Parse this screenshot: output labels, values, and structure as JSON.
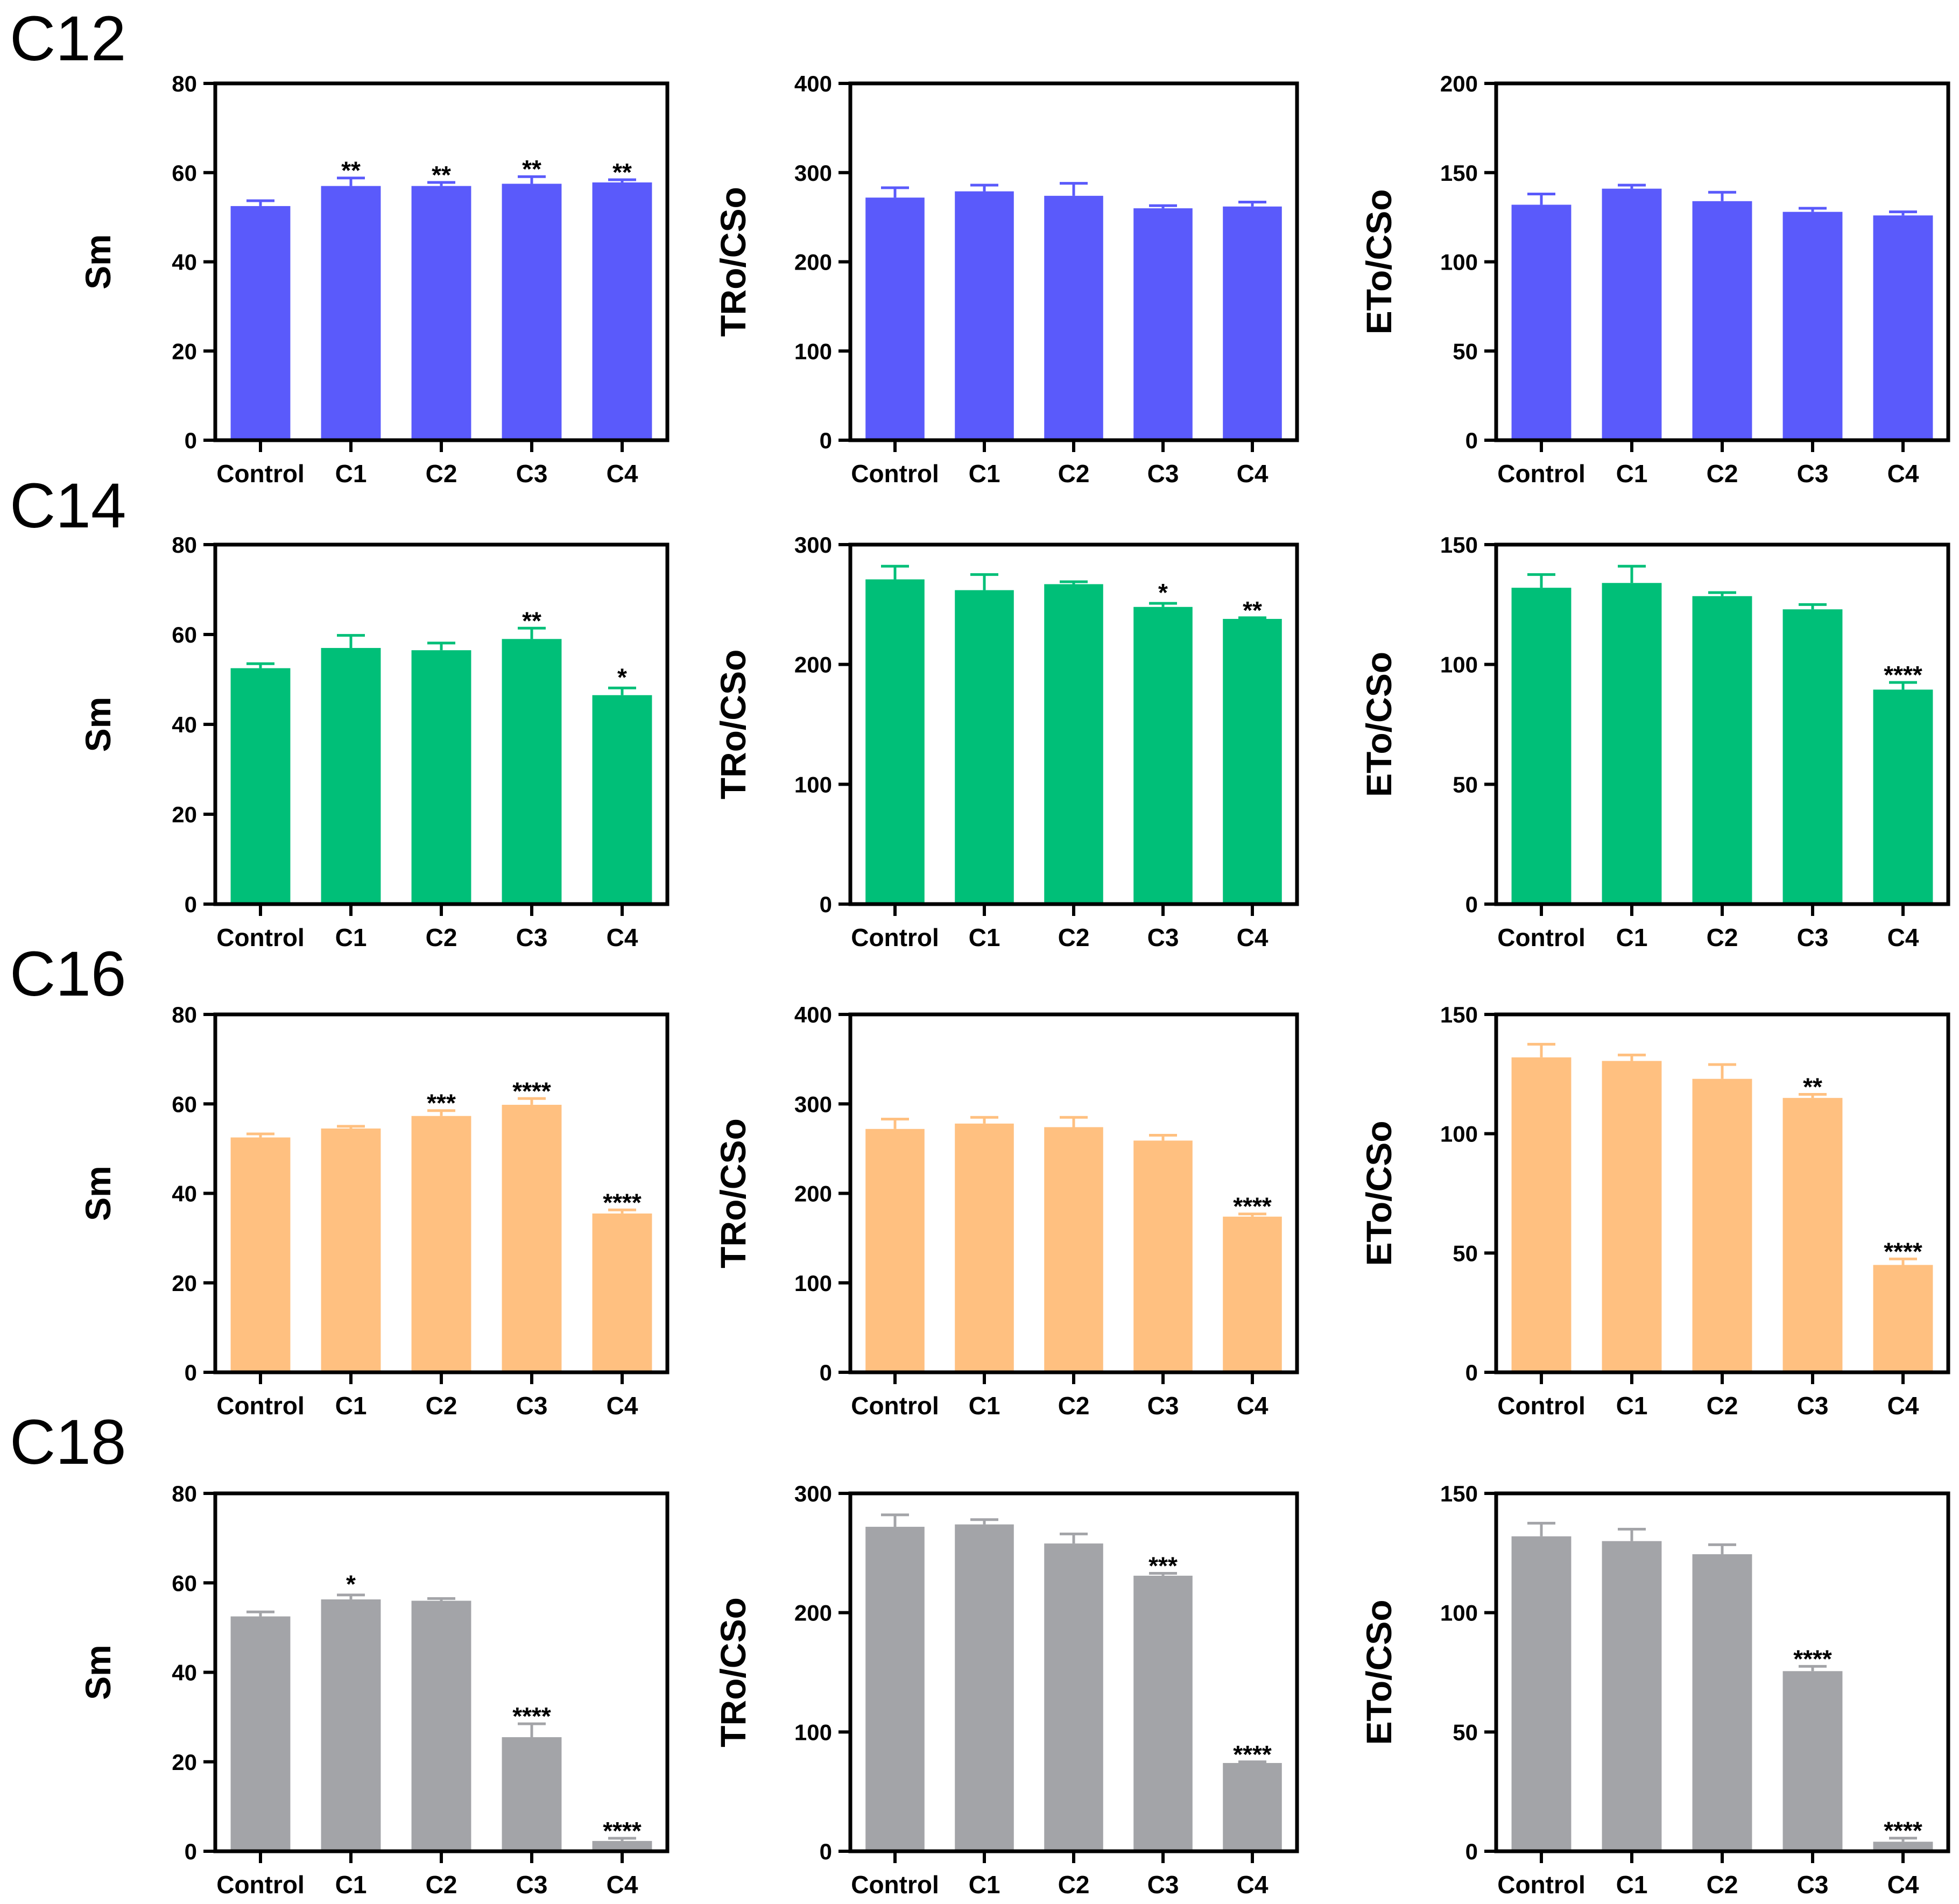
{
  "categories": [
    "Control",
    "C1",
    "C2",
    "C3",
    "C4"
  ],
  "rows": [
    {
      "label": "C12",
      "color": "#5a5afb"
    },
    {
      "label": "C14",
      "color": "#00bf78"
    },
    {
      "label": "C16",
      "color": "#ffc080"
    },
    {
      "label": "C18",
      "color": "#a3a4a8"
    }
  ],
  "chart_data": [
    {
      "type": "bar",
      "group": "C12",
      "ylabel": "Sm",
      "ylim": [
        0,
        80
      ],
      "yticks": [
        0,
        20,
        40,
        60,
        80
      ],
      "categories": [
        "Control",
        "C1",
        "C2",
        "C3",
        "C4"
      ],
      "values": [
        52.5,
        57,
        57,
        57.5,
        57.8
      ],
      "errors": [
        1.2,
        1.8,
        0.8,
        1.6,
        0.6
      ],
      "significance": [
        "",
        "**",
        "**",
        "**",
        "**"
      ]
    },
    {
      "type": "bar",
      "group": "C12",
      "ylabel": "TRo/CSo",
      "ylim": [
        0,
        400
      ],
      "yticks": [
        0,
        100,
        200,
        300,
        400
      ],
      "categories": [
        "Control",
        "C1",
        "C2",
        "C3",
        "C4"
      ],
      "values": [
        272,
        279,
        274,
        260,
        262
      ],
      "errors": [
        11,
        7,
        14,
        3,
        5
      ],
      "significance": [
        "",
        "",
        "",
        "",
        ""
      ]
    },
    {
      "type": "bar",
      "group": "C12",
      "ylabel": "ETo/CSo",
      "ylim": [
        0,
        200
      ],
      "yticks": [
        0,
        50,
        100,
        150,
        200
      ],
      "categories": [
        "Control",
        "C1",
        "C2",
        "C3",
        "C4"
      ],
      "values": [
        132,
        141,
        134,
        128,
        126
      ],
      "errors": [
        6,
        2,
        5,
        2,
        2
      ],
      "significance": [
        "",
        "",
        "",
        "",
        ""
      ]
    },
    {
      "type": "bar",
      "group": "C14",
      "ylabel": "Sm",
      "ylim": [
        0,
        80
      ],
      "yticks": [
        0,
        20,
        40,
        60,
        80
      ],
      "categories": [
        "Control",
        "C1",
        "C2",
        "C3",
        "C4"
      ],
      "values": [
        52.5,
        57,
        56.5,
        59,
        46.5
      ],
      "errors": [
        1,
        2.8,
        1.6,
        2.4,
        1.6
      ],
      "significance": [
        "",
        "",
        "",
        "**",
        "*"
      ]
    },
    {
      "type": "bar",
      "group": "C14",
      "ylabel": "TRo/CSo",
      "ylim": [
        0,
        300
      ],
      "yticks": [
        0,
        100,
        200,
        300
      ],
      "categories": [
        "Control",
        "C1",
        "C2",
        "C3",
        "C4"
      ],
      "values": [
        271,
        262,
        267,
        248,
        238
      ],
      "errors": [
        11,
        13,
        2,
        3,
        1
      ],
      "significance": [
        "",
        "",
        "",
        "*",
        "**"
      ]
    },
    {
      "type": "bar",
      "group": "C14",
      "ylabel": "ETo/CSo",
      "ylim": [
        0,
        150
      ],
      "yticks": [
        0,
        50,
        100,
        150
      ],
      "categories": [
        "Control",
        "C1",
        "C2",
        "C3",
        "C4"
      ],
      "values": [
        132,
        134,
        128.5,
        123,
        89.5
      ],
      "errors": [
        5.5,
        7,
        1.5,
        2,
        3
      ],
      "significance": [
        "",
        "",
        "",
        "",
        "****"
      ]
    },
    {
      "type": "bar",
      "group": "C16",
      "ylabel": "Sm",
      "ylim": [
        0,
        80
      ],
      "yticks": [
        0,
        20,
        40,
        60,
        80
      ],
      "categories": [
        "Control",
        "C1",
        "C2",
        "C3",
        "C4"
      ],
      "values": [
        52.5,
        54.5,
        57.3,
        59.8,
        35.5
      ],
      "errors": [
        0.8,
        0.5,
        1.2,
        1.4,
        0.8
      ],
      "significance": [
        "",
        "",
        "***",
        "****",
        "****"
      ]
    },
    {
      "type": "bar",
      "group": "C16",
      "ylabel": "TRo/CSo",
      "ylim": [
        0,
        400
      ],
      "yticks": [
        0,
        100,
        200,
        300,
        400
      ],
      "categories": [
        "Control",
        "C1",
        "C2",
        "C3",
        "C4"
      ],
      "values": [
        272,
        278,
        274,
        259,
        174
      ],
      "errors": [
        11,
        7,
        11,
        6,
        3
      ],
      "significance": [
        "",
        "",
        "",
        "",
        "****"
      ]
    },
    {
      "type": "bar",
      "group": "C16",
      "ylabel": "ETo/CSo",
      "ylim": [
        0,
        150
      ],
      "yticks": [
        0,
        50,
        100,
        150
      ],
      "categories": [
        "Control",
        "C1",
        "C2",
        "C3",
        "C4"
      ],
      "values": [
        132,
        130.5,
        123,
        115,
        45
      ],
      "errors": [
        5.5,
        2.5,
        6,
        1.5,
        2.5
      ],
      "significance": [
        "",
        "",
        "",
        "**",
        "****"
      ]
    },
    {
      "type": "bar",
      "group": "C18",
      "ylabel": "Sm",
      "ylim": [
        0,
        80
      ],
      "yticks": [
        0,
        20,
        40,
        60,
        80
      ],
      "categories": [
        "Control",
        "C1",
        "C2",
        "C3",
        "C4"
      ],
      "values": [
        52.5,
        56.3,
        56,
        25.5,
        2.3
      ],
      "errors": [
        1,
        1,
        0.5,
        3,
        0.6
      ],
      "significance": [
        "",
        "*",
        "",
        "****",
        "****"
      ]
    },
    {
      "type": "bar",
      "group": "C18",
      "ylabel": "TRo/CSo",
      "ylim": [
        0,
        300
      ],
      "yticks": [
        0,
        100,
        200,
        300
      ],
      "categories": [
        "Control",
        "C1",
        "C2",
        "C3",
        "C4"
      ],
      "values": [
        272,
        274,
        258,
        231,
        74
      ],
      "errors": [
        10,
        4,
        8,
        2,
        1
      ],
      "significance": [
        "",
        "",
        "",
        "***",
        "****"
      ]
    },
    {
      "type": "bar",
      "group": "C18",
      "ylabel": "ETo/CSo",
      "ylim": [
        0,
        150
      ],
      "yticks": [
        0,
        50,
        100,
        150
      ],
      "categories": [
        "Control",
        "C1",
        "C2",
        "C3",
        "C4"
      ],
      "values": [
        132,
        130,
        124.5,
        75.5,
        4
      ],
      "errors": [
        5.5,
        5,
        4,
        2,
        1.5
      ],
      "significance": [
        "",
        "",
        "",
        "****",
        "****"
      ]
    }
  ]
}
